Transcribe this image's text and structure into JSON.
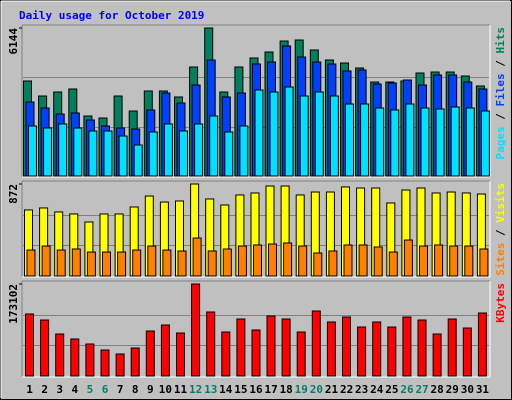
{
  "title": "Daily usage for October 2019",
  "legend_separator": " / ",
  "categories": [
    "1",
    "2",
    "3",
    "4",
    "5",
    "6",
    "7",
    "8",
    "9",
    "10",
    "11",
    "12",
    "13",
    "14",
    "15",
    "16",
    "17",
    "18",
    "19",
    "20",
    "21",
    "22",
    "23",
    "24",
    "25",
    "26",
    "27",
    "28",
    "29",
    "30",
    "31"
  ],
  "highlighted_categories": [
    "5",
    "6",
    "12",
    "13",
    "19",
    "20",
    "26",
    "27"
  ],
  "highlight_color": "#00806b",
  "chart_data": [
    {
      "type": "bar",
      "ylim": [
        0,
        6144
      ],
      "yticks": [
        6144
      ],
      "series": [
        {
          "name": "Hits",
          "color": "#00805c",
          "values": [
            3944,
            3321,
            3487,
            3612,
            2491,
            2408,
            3321,
            2698,
            3529,
            3529,
            3280,
            4525,
            6144,
            3487,
            4525,
            4899,
            5148,
            5604,
            5646,
            5231,
            4816,
            4691,
            4484,
            3902,
            3902,
            3944,
            4276,
            4317,
            4317,
            4151,
            3736
          ]
        },
        {
          "name": "Files",
          "color": "#0040ff",
          "values": [
            3072,
            2823,
            2574,
            2616,
            2325,
            2076,
            1992,
            1951,
            2740,
            3446,
            3030,
            3778,
            4816,
            3280,
            3446,
            4650,
            4733,
            5397,
            4940,
            4733,
            4650,
            4359,
            4401,
            3819,
            3861,
            3985,
            3778,
            4193,
            4193,
            3902,
            3612
          ]
        },
        {
          "name": "Pages",
          "color": "#00e0ff",
          "values": [
            2076,
            1992,
            2159,
            1992,
            1868,
            1868,
            1660,
            1287,
            1827,
            2159,
            1868,
            2159,
            2491,
            1827,
            2076,
            3570,
            3487,
            3694,
            3321,
            3487,
            3321,
            2989,
            2989,
            2823,
            2740,
            2989,
            2823,
            2781,
            2864,
            2823,
            2698
          ]
        }
      ]
    },
    {
      "type": "bar",
      "ylim": [
        0,
        872
      ],
      "yticks": [
        872
      ],
      "series": [
        {
          "name": "Visits",
          "color": "#ffff00",
          "values": [
            626,
            645,
            607,
            588,
            512,
            588,
            588,
            654,
            758,
            701,
            711,
            872,
            730,
            673,
            768,
            787,
            853,
            853,
            768,
            796,
            796,
            844,
            834,
            834,
            692,
            815,
            834,
            787,
            796,
            787,
            777
          ]
        },
        {
          "name": "Sites",
          "color": "#ff8000",
          "values": [
            246,
            284,
            246,
            256,
            227,
            227,
            227,
            246,
            284,
            246,
            237,
            360,
            237,
            256,
            284,
            294,
            303,
            313,
            284,
            218,
            237,
            294,
            294,
            275,
            227,
            341,
            284,
            294,
            284,
            284,
            256
          ]
        }
      ]
    },
    {
      "type": "bar",
      "ylim": [
        0,
        173102
      ],
      "yticks": [
        173102
      ],
      "series": [
        {
          "name": "KBytes",
          "color": "#ff0000",
          "values": [
            116657,
            105368,
            79025,
            69617,
            60209,
            48920,
            41394,
            52683,
            84669,
            95960,
            80907,
            173102,
            120420,
            82788,
            107250,
            86551,
            112893,
            107250,
            82788,
            122301,
            101604,
            111011,
            92196,
            101604,
            92196,
            111011,
            105368,
            79025,
            107250,
            90314,
            118539
          ]
        }
      ]
    }
  ]
}
